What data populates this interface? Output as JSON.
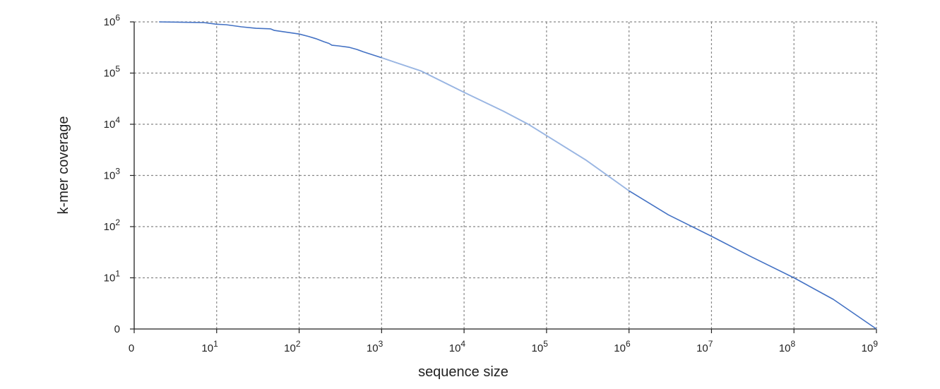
{
  "chart_data": {
    "type": "line",
    "title": "",
    "xlabel": "sequence size",
    "ylabel": "k-mer coverage",
    "x_scale": "log",
    "y_scale": "log",
    "xlim": [
      1,
      1000000000
    ],
    "ylim": [
      1,
      1000000
    ],
    "grid": true,
    "legend": "none",
    "x_ticks": [
      {
        "value": 1,
        "base": "0",
        "exp": ""
      },
      {
        "value": 10,
        "base": "10",
        "exp": "1"
      },
      {
        "value": 100,
        "base": "10",
        "exp": "2"
      },
      {
        "value": 1000,
        "base": "10",
        "exp": "3"
      },
      {
        "value": 10000,
        "base": "10",
        "exp": "4"
      },
      {
        "value": 100000,
        "base": "10",
        "exp": "5"
      },
      {
        "value": 1000000,
        "base": "10",
        "exp": "6"
      },
      {
        "value": 10000000,
        "base": "10",
        "exp": "7"
      },
      {
        "value": 100000000,
        "base": "10",
        "exp": "8"
      },
      {
        "value": 1000000000,
        "base": "10",
        "exp": "9"
      }
    ],
    "y_ticks": [
      {
        "value": 1,
        "base": "0",
        "exp": ""
      },
      {
        "value": 10,
        "base": "10",
        "exp": "1"
      },
      {
        "value": 100,
        "base": "10",
        "exp": "2"
      },
      {
        "value": 1000,
        "base": "10",
        "exp": "3"
      },
      {
        "value": 10000,
        "base": "10",
        "exp": "4"
      },
      {
        "value": 100000,
        "base": "10",
        "exp": "5"
      },
      {
        "value": 1000000,
        "base": "10",
        "exp": "6"
      }
    ],
    "series": [
      {
        "color": "#4472c4",
        "highlight_color": "#9bb7e3",
        "highlight_range": [
          1000,
          1000000
        ],
        "x": [
          2,
          7,
          10,
          13,
          20,
          30,
          45,
          50,
          100,
          130,
          160,
          200,
          230,
          250,
          300,
          400,
          500,
          600,
          1000,
          1500,
          3000,
          10000,
          30000,
          60000,
          100000,
          300000,
          1000000,
          3000000,
          10000000,
          30000000,
          100000000,
          300000000,
          1000000000
        ],
        "y": [
          1000000,
          970000,
          900000,
          880000,
          800000,
          750000,
          730000,
          680000,
          580000,
          520000,
          470000,
          410000,
          380000,
          350000,
          340000,
          320000,
          290000,
          260000,
          200000,
          160000,
          110000,
          42000,
          18000,
          10000,
          6000,
          2000,
          500,
          170,
          65,
          26,
          10,
          3.8,
          1
        ]
      }
    ]
  }
}
